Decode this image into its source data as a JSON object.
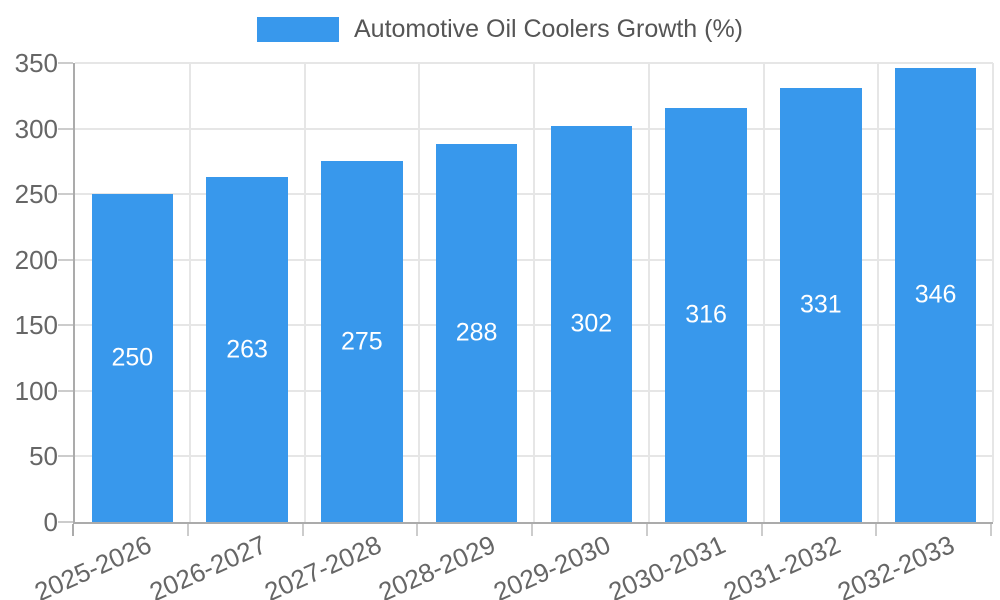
{
  "chart_data": {
    "type": "bar",
    "title": "",
    "legend_label": "Automotive Oil Coolers Growth (%)",
    "legend_position": "top-center",
    "categories": [
      "2025-2026",
      "2026-2027",
      "2027-2028",
      "2028-2029",
      "2029-2030",
      "2030-2031",
      "2031-2032",
      "2032-2033"
    ],
    "values": [
      250,
      263,
      275,
      288,
      302,
      316,
      331,
      346
    ],
    "xlabel": "",
    "ylabel": "",
    "ylim": [
      0,
      350
    ],
    "yticks": [
      0,
      50,
      100,
      150,
      200,
      250,
      300,
      350
    ],
    "grid": true,
    "value_labels_shown": true,
    "value_label_position": "inside-center"
  },
  "colors": {
    "background": "#ffffff",
    "bar": "#3898ec",
    "axis_line": "#ababab",
    "gridline": "#e6e6e6",
    "tick": "#cccccc",
    "axis_text": "#666666",
    "legend_text": "#555555",
    "value_label_text": "#ffffff"
  }
}
